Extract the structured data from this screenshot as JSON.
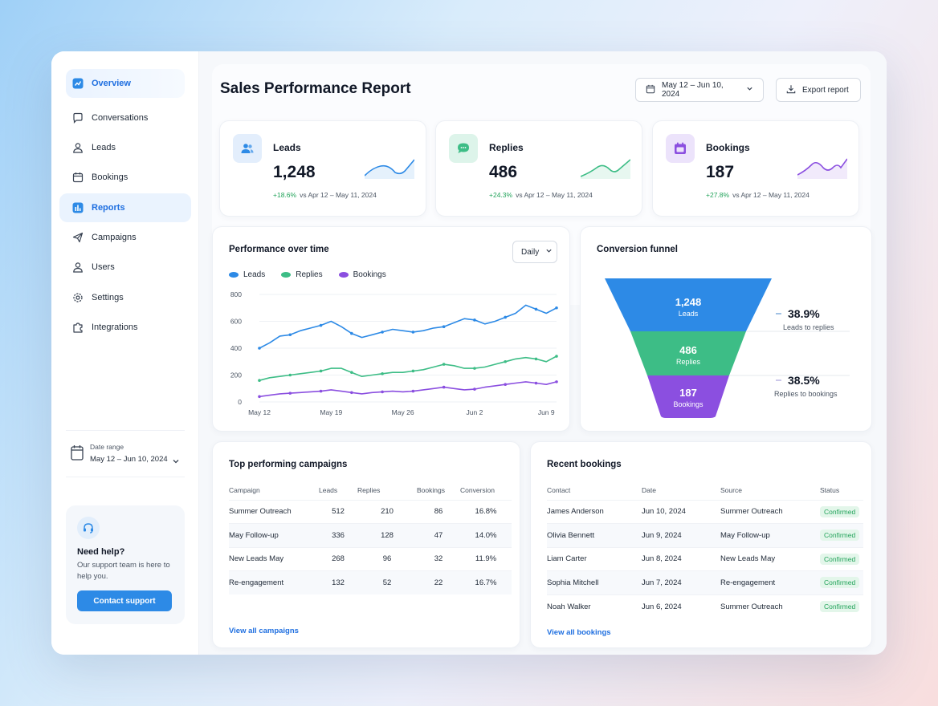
{
  "sidebar": {
    "items": [
      {
        "label": "Overview"
      },
      {
        "label": "Conversations"
      },
      {
        "label": "Leads"
      },
      {
        "label": "Bookings"
      },
      {
        "label": "Reports"
      },
      {
        "label": "Campaigns"
      },
      {
        "label": "Users"
      },
      {
        "label": "Settings"
      },
      {
        "label": "Integrations"
      }
    ],
    "date_range": {
      "label": "Date range",
      "value": "May 12 – Jun 10, 2024"
    },
    "help": {
      "title": "Need help?",
      "text": "Our support team is here to help you.",
      "button": "Contact support"
    }
  },
  "header": {
    "title": "Sales Performance Report",
    "date_button": "May 12 – Jun 10, 2024",
    "export_button": "Export report"
  },
  "kpis": [
    {
      "label": "Leads",
      "value": "1,248",
      "change": "+18.6%",
      "compare": "vs Apr 12 – May 11, 2024",
      "color": "#2d8ae6"
    },
    {
      "label": "Replies",
      "value": "486",
      "change": "+24.3%",
      "compare": "vs Apr 12 – May 11, 2024",
      "color": "#3dbd86"
    },
    {
      "label": "Bookings",
      "value": "187",
      "change": "+27.8%",
      "compare": "vs Apr 12 – May 11, 2024",
      "color": "#8b4fe0"
    }
  ],
  "performance": {
    "title": "Performance over time",
    "granularity": "Daily"
  },
  "chart_data": {
    "type": "line",
    "x": [
      "May 12",
      "May 13",
      "May 14",
      "May 15",
      "May 16",
      "May 17",
      "May 18",
      "May 19",
      "May 20",
      "May 21",
      "May 22",
      "May 23",
      "May 24",
      "May 25",
      "May 26",
      "May 27",
      "May 28",
      "May 29",
      "May 30",
      "May 31",
      "Jun 1",
      "Jun 2",
      "Jun 3",
      "Jun 4",
      "Jun 5",
      "Jun 6",
      "Jun 7",
      "Jun 8",
      "Jun 9",
      "Jun 10"
    ],
    "x_ticks": [
      "May 12",
      "May 19",
      "May 26",
      "Jun 2",
      "Jun 9"
    ],
    "series": [
      {
        "name": "Leads",
        "color": "#2d8ae6",
        "values": [
          400,
          440,
          490,
          500,
          530,
          550,
          570,
          600,
          560,
          510,
          480,
          500,
          520,
          540,
          530,
          520,
          530,
          550,
          560,
          590,
          620,
          610,
          580,
          600,
          630,
          660,
          720,
          690,
          660,
          700
        ]
      },
      {
        "name": "Replies",
        "color": "#3dbd86",
        "values": [
          160,
          180,
          190,
          200,
          210,
          220,
          230,
          250,
          250,
          220,
          190,
          200,
          210,
          220,
          220,
          230,
          240,
          260,
          280,
          270,
          250,
          250,
          260,
          280,
          300,
          320,
          330,
          320,
          300,
          340
        ]
      },
      {
        "name": "Bookings",
        "color": "#8b4fe0",
        "values": [
          40,
          50,
          60,
          65,
          70,
          75,
          80,
          90,
          80,
          70,
          60,
          70,
          75,
          80,
          75,
          80,
          90,
          100,
          110,
          100,
          90,
          95,
          110,
          120,
          130,
          140,
          150,
          140,
          130,
          150
        ]
      }
    ],
    "ylim": [
      0,
      800
    ],
    "y_ticks": [
      0,
      200,
      400,
      600,
      800
    ],
    "grid": true,
    "legend": "top-left"
  },
  "funnel": {
    "title": "Conversion funnel",
    "stages": [
      {
        "value": "1,248",
        "label": "Leads",
        "color": "#2d8ae6"
      },
      {
        "value": "486",
        "label": "Replies",
        "color": "#3dbd86"
      },
      {
        "value": "187",
        "label": "Bookings",
        "color": "#8b4fe0"
      }
    ],
    "rates": [
      {
        "value": "38.9%",
        "label": "Leads to replies"
      },
      {
        "value": "38.5%",
        "label": "Replies to bookings"
      }
    ]
  },
  "campaigns": {
    "title": "Top performing campaigns",
    "headers": [
      "Campaign",
      "Leads",
      "Replies",
      "Bookings",
      "Conversion"
    ],
    "rows": [
      [
        "Summer Outreach",
        "512",
        "210",
        "86",
        "16.8%"
      ],
      [
        "May Follow-up",
        "336",
        "128",
        "47",
        "14.0%"
      ],
      [
        "New Leads May",
        "268",
        "96",
        "32",
        "11.9%"
      ],
      [
        "Re-engagement",
        "132",
        "52",
        "22",
        "16.7%"
      ]
    ],
    "link": "View all campaigns"
  },
  "bookings": {
    "title": "Recent bookings",
    "headers": [
      "Contact",
      "Date",
      "Source",
      "Status"
    ],
    "rows": [
      [
        "James Anderson",
        "Jun 10, 2024",
        "Summer Outreach",
        "Confirmed"
      ],
      [
        "Olivia Bennett",
        "Jun 9, 2024",
        "May Follow-up",
        "Confirmed"
      ],
      [
        "Liam Carter",
        "Jun 8, 2024",
        "New Leads May",
        "Confirmed"
      ],
      [
        "Sophia Mitchell",
        "Jun 7, 2024",
        "Re-engagement",
        "Confirmed"
      ],
      [
        "Noah Walker",
        "Jun 6, 2024",
        "Summer Outreach",
        "Confirmed"
      ]
    ],
    "link": "View all bookings"
  }
}
